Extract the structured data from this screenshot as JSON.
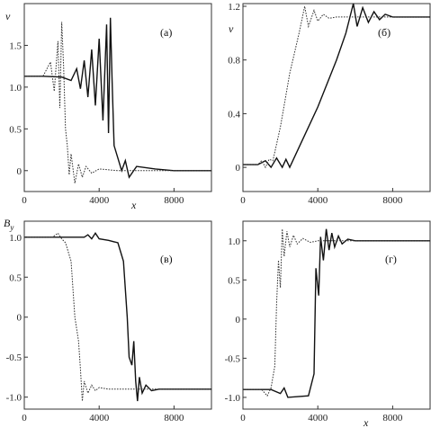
{
  "chart_data": [
    {
      "type": "line",
      "panel_label": "(а)",
      "ylabel": "v",
      "xlabel": "x",
      "xlim": [
        0,
        10000
      ],
      "ylim": [
        -0.25,
        2.0
      ],
      "xticks": [
        0,
        4000,
        8000
      ],
      "yticks": [
        0,
        0.5,
        1.0,
        1.5
      ],
      "ytick_labels": [
        "0",
        "0.5",
        "1.0",
        "1.5"
      ],
      "series": [
        {
          "style": "solid",
          "x": [
            0,
            1000,
            2000,
            2500,
            2800,
            3000,
            3200,
            3400,
            3600,
            3800,
            4000,
            4200,
            4400,
            4500,
            4600,
            4700,
            4800,
            5000,
            5200,
            5400,
            5600,
            6000,
            7000,
            8000,
            10000
          ],
          "y": [
            1.13,
            1.13,
            1.12,
            1.08,
            1.22,
            0.98,
            1.32,
            0.88,
            1.45,
            0.78,
            1.58,
            0.6,
            1.75,
            0.45,
            1.83,
            1.0,
            0.3,
            0.15,
            0.0,
            0.12,
            -0.08,
            0.05,
            0.02,
            0.0,
            0.0
          ]
        },
        {
          "style": "dotted",
          "x": [
            0,
            1000,
            1400,
            1600,
            1800,
            1900,
            2000,
            2100,
            2200,
            2300,
            2400,
            2500,
            2700,
            2900,
            3100,
            3300,
            3600,
            4000,
            5000,
            6000,
            10000
          ],
          "y": [
            1.13,
            1.13,
            1.3,
            0.95,
            1.55,
            0.75,
            1.78,
            1.25,
            0.5,
            0.3,
            -0.05,
            0.2,
            -0.15,
            0.08,
            -0.08,
            0.05,
            -0.03,
            0.02,
            0.0,
            0.0,
            0.0
          ]
        }
      ]
    },
    {
      "type": "line",
      "panel_label": "(б)",
      "ylabel": "v",
      "xlabel": "",
      "xlim": [
        0,
        10000
      ],
      "ylim": [
        -0.18,
        1.22
      ],
      "xticks": [
        0,
        4000,
        8000
      ],
      "yticks": [
        0,
        0.4,
        0.8,
        1.2
      ],
      "ytick_labels": [
        "0",
        "0.4",
        "0.8",
        "1.2"
      ],
      "series": [
        {
          "style": "solid",
          "x": [
            0,
            800,
            1200,
            1500,
            1800,
            2100,
            2300,
            2500,
            3000,
            4000,
            5000,
            5500,
            5900,
            6100,
            6400,
            6700,
            7000,
            7300,
            7600,
            8000,
            9000,
            10000
          ],
          "y": [
            0.02,
            0.02,
            0.05,
            0.0,
            0.07,
            0.0,
            0.06,
            0.0,
            0.15,
            0.45,
            0.8,
            1.0,
            1.22,
            1.05,
            1.19,
            1.08,
            1.16,
            1.1,
            1.14,
            1.12,
            1.12,
            1.12
          ]
        },
        {
          "style": "dotted",
          "x": [
            0,
            800,
            1000,
            1200,
            1400,
            1600,
            2000,
            2500,
            3000,
            3300,
            3500,
            3800,
            4000,
            4300,
            4600,
            5000,
            6000,
            10000
          ],
          "y": [
            0.02,
            0.02,
            0.05,
            0.0,
            0.06,
            0.05,
            0.3,
            0.7,
            1.0,
            1.2,
            1.05,
            1.17,
            1.09,
            1.14,
            1.11,
            1.12,
            1.12,
            1.12
          ]
        }
      ]
    },
    {
      "type": "line",
      "panel_label": "(в)",
      "ylabel": "B_y",
      "xlabel": "",
      "xlim": [
        0,
        10000
      ],
      "ylim": [
        -1.15,
        1.2
      ],
      "xticks": [
        0,
        4000,
        8000
      ],
      "yticks": [
        -1.0,
        -0.5,
        0,
        0.5,
        1.0
      ],
      "ytick_labels": [
        "-1.0",
        "-0.5",
        "0",
        "0.5",
        "1.0"
      ],
      "series": [
        {
          "style": "solid",
          "x": [
            0,
            2500,
            3200,
            3400,
            3600,
            3800,
            4000,
            4500,
            5000,
            5300,
            5500,
            5600,
            5750,
            5850,
            5950,
            6050,
            6150,
            6300,
            6500,
            6800,
            7200,
            8000,
            10000
          ],
          "y": [
            1.0,
            1.0,
            1.0,
            1.03,
            0.98,
            1.05,
            0.98,
            0.96,
            0.93,
            0.7,
            0.0,
            -0.5,
            -0.6,
            -0.3,
            -0.8,
            -1.05,
            -0.75,
            -0.95,
            -0.85,
            -0.92,
            -0.9,
            -0.9,
            -0.9
          ]
        },
        {
          "style": "dotted",
          "x": [
            0,
            1500,
            1800,
            2000,
            2200,
            2500,
            2700,
            2900,
            3000,
            3100,
            3200,
            3400,
            3600,
            3800,
            4000,
            4500,
            5000,
            10000
          ],
          "y": [
            1.0,
            1.0,
            1.05,
            0.98,
            0.93,
            0.7,
            0.0,
            -0.3,
            -0.65,
            -1.05,
            -0.8,
            -0.95,
            -0.85,
            -0.92,
            -0.88,
            -0.9,
            -0.9,
            -0.9
          ]
        }
      ]
    },
    {
      "type": "line",
      "panel_label": "(г)",
      "ylabel": "",
      "xlabel": "x",
      "xlim": [
        0,
        10000
      ],
      "ylim": [
        -1.15,
        1.25
      ],
      "xticks": [
        0,
        4000,
        8000
      ],
      "yticks": [
        -1.0,
        -0.5,
        0,
        0.5,
        1.0
      ],
      "ytick_labels": [
        "-1.0",
        "-0.5",
        "0",
        "0.5",
        "1.0"
      ],
      "series": [
        {
          "style": "solid",
          "x": [
            0,
            1500,
            2000,
            2200,
            2400,
            3500,
            3800,
            3900,
            4050,
            4150,
            4300,
            4450,
            4600,
            4750,
            4900,
            5100,
            5300,
            5600,
            6000,
            7000,
            10000
          ],
          "y": [
            -0.9,
            -0.9,
            -0.95,
            -0.88,
            -1.0,
            -0.98,
            -0.7,
            0.65,
            0.3,
            1.05,
            0.75,
            1.15,
            0.88,
            1.1,
            0.92,
            1.06,
            0.96,
            1.02,
            1.0,
            1.0,
            1.0
          ]
        },
        {
          "style": "dotted",
          "x": [
            0,
            1000,
            1300,
            1500,
            1700,
            1800,
            1900,
            2000,
            2100,
            2200,
            2350,
            2500,
            2700,
            2900,
            3200,
            3600,
            4000,
            5000,
            10000
          ],
          "y": [
            -0.9,
            -0.9,
            -0.98,
            -0.88,
            -0.6,
            0.2,
            0.75,
            0.4,
            1.15,
            0.8,
            1.12,
            0.92,
            1.07,
            0.96,
            1.03,
            0.98,
            1.0,
            1.0,
            1.0
          ]
        }
      ]
    }
  ]
}
